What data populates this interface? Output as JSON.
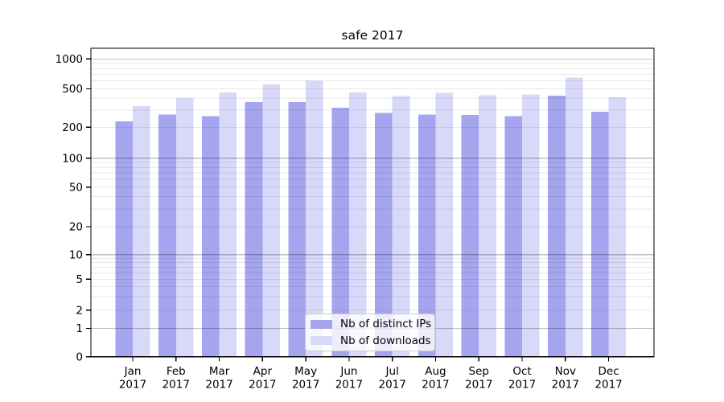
{
  "title": "safe 2017",
  "chart_data": {
    "type": "bar",
    "title": "safe 2017",
    "categories": [
      "Jan",
      "Feb",
      "Mar",
      "Apr",
      "May",
      "Jun",
      "Jul",
      "Aug",
      "Sep",
      "Oct",
      "Nov",
      "Dec"
    ],
    "year_label": "2017",
    "series": [
      {
        "name": "Nb of distinct IPs",
        "color": "#a5a5ef",
        "values": [
          230,
          270,
          260,
          365,
          365,
          320,
          280,
          270,
          268,
          260,
          425,
          290
        ]
      },
      {
        "name": "Nb of downloads",
        "color": "#d8d8f8",
        "values": [
          330,
          400,
          460,
          555,
          600,
          460,
          420,
          455,
          430,
          438,
          648,
          410
        ]
      }
    ],
    "yscale": "symlog",
    "yticks": [
      0,
      1,
      2,
      5,
      10,
      20,
      50,
      100,
      200,
      500,
      1000
    ],
    "ylim": [
      0,
      1200
    ],
    "grid": true,
    "legend_position": "lower center"
  },
  "legend": {
    "items": [
      {
        "label": "Nb of distinct IPs",
        "color": "#a5a5ef"
      },
      {
        "label": "Nb of downloads",
        "color": "#d8d8f8"
      }
    ]
  }
}
